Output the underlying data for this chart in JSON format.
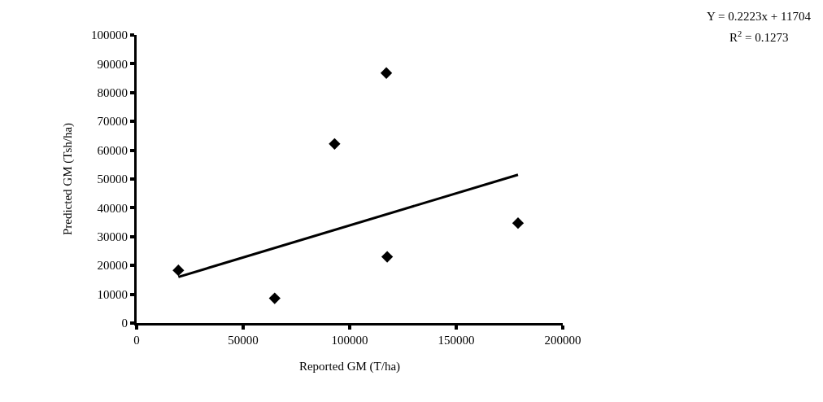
{
  "chart_data": {
    "type": "scatter",
    "xlabel": "Reported GM (T/ha)",
    "ylabel": "Predicted GM (Tsh/ha)",
    "series": [
      {
        "color": "#000000",
        "x": [
          19600,
          64800,
          92900,
          117200,
          117600,
          179000
        ],
        "values": [
          18300,
          8600,
          62200,
          86800,
          23000,
          34700
        ]
      },
      {
        "type": "line",
        "marker": "none",
        "color": "#000000",
        "x": [
          19600,
          179000
        ],
        "values": [
          16000,
          51500
        ]
      }
    ],
    "xlim": [
      0,
      200000
    ],
    "xticks": [
      0,
      50000,
      100000,
      150000,
      200000
    ],
    "ylim": [
      0,
      100000
    ],
    "yticks": [
      0,
      10000,
      20000,
      30000,
      40000,
      50000,
      60000,
      70000,
      80000,
      90000,
      100000
    ],
    "annotations": [
      "Y = 0.2223x + 11704",
      "R$^{2}$ = 0.1273"
    ],
    "marker": "diamond",
    "line_style": "solid",
    "grid": false,
    "legend": false
  }
}
